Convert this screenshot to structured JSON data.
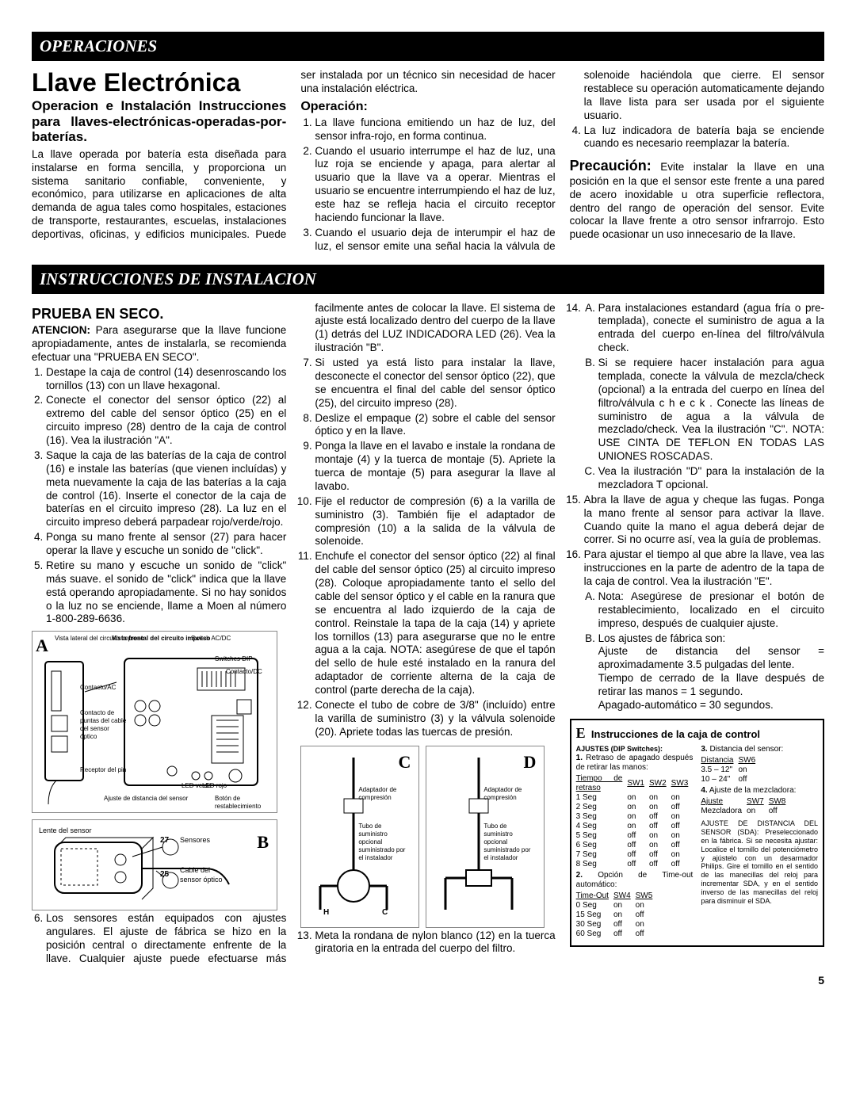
{
  "header1": "OPERACIONES",
  "header2": "INSTRUCCIONES DE INSTALACION",
  "title": "Llave Electrónica",
  "subtitle": "Operacion e Instalación Instrucciones para llaves-electrónicas-operadas-por-baterías.",
  "intro": "La llave operada por batería esta diseñada para instalarse en forma sencilla, y proporciona un sistema sanitario confiable, conveniente, y económico, para utilizarse en aplicaciones de alta demanda de agua tales como hospitales, estaciones de transporte, restaurantes, escuelas, instalaciones deportivas, oficinas, y edificios municipales. Puede ser instalada por un técnico sin necesidad de hacer una instalación eléctrica.",
  "op_h": "Operación:",
  "op_1": "La llave funciona emitiendo un haz de luz, del sensor infra-rojo, en forma continua.",
  "op_2": "Cuando el usuario interrumpe el haz de luz, una luz roja se enciende y apaga, para alertar al usuario que la llave va a operar. Mientras el usuario se encuentre interrumpiendo el haz de luz, este haz se refleja hacia el circuito receptor haciendo funcionar la llave.",
  "op_3": "Cuando el usuario deja de interumpir el haz de luz, el sensor emite una señal hacia la válvula de solenoide haciéndola que cierre. El sensor restablece su operación automaticamente dejando la llave lista para ser usada por el siguiente usuario.",
  "op_4": "La luz indicadora de batería baja se enciende cuando es necesario reemplazar la batería.",
  "caution_h": "Precaución:",
  "caution": "Evite instalar la llave en una posición en la que el sensor este frente a una pared de acero inoxidable u otra superficie reflectora, dentro del rango de operación del sensor. Evite colocar la llave frente a otro sensor infrarrojo. Esto puede ocasionar un uso innecesario de la llave.",
  "dry_h": "PRUEBA EN SECO.",
  "dry_note_h": "ATENCION:",
  "dry_note": "Para asegurarse que la llave funcione apropiadamente, antes de instalarla, se recomienda efectuar una \"PRUEBA EN SECO\".",
  "s1": "Destape la caja de control (14) desenroscando los tornillos (13) con un llave hexagonal.",
  "s2": "Conecte el conector del sensor óptico (22) al extremo del cable del sensor óptico (25) en el circuito impreso (28) dentro de la caja de control (16). Vea la ilustración \"A\".",
  "s3": "Saque la caja de las baterías de la caja de control (16) e instale las baterías (que vienen incluídas) y meta nuevamente la caja de las baterías a la caja de control (16). Inserte el conector de la caja de baterías en el circuito impreso (28). La luz en el circuito impreso deberá parpadear rojo/verde/rojo.",
  "s4": "Ponga su mano frente al sensor (27) para hacer operar la llave y escuche un sonido de \"click\".",
  "s5": "Retire su mano y escuche un sonido de \"click\" más suave. el sonido de \"click\" indica que la llave está operando apropiadamente. Si no hay sonidos o la luz no se enciende, llame a Moen al número 1-800-289-6636.",
  "s6": "Los sensores están equipados con ajustes angulares. El ajuste de fábrica se hizo en la posición central o directamente enfrente de la llave. Cualquier ajuste puede efectuarse más facilmente antes de colocar la llave. El sistema de ajuste está localizado dentro del cuerpo de la llave (1) detrás del LUZ INDICADORA LED (26). Vea la ilustración \"B\".",
  "s7": "Si usted ya está listo para instalar la llave, desconecte el conector del sensor óptico (22), que se encuentra el final del cable del sensor óptico (25), del circuito impreso (28).",
  "s8": "Deslize el empaque (2) sobre el cable del sensor óptico y en la llave.",
  "s9": "Ponga la llave en el lavabo e instale la rondana de montaje (4) y la tuerca de montaje (5). Apriete la tuerca de montaje (5) para asegurar la llave al lavabo.",
  "s10": "Fije el reductor de compresión (6) a la varilla de suministro (3). También fije el adaptador de compresión (10) a la salida de la válvula de solenoide.",
  "s11": "Enchufe el conector del sensor óptico (22) al final del cable del sensor óptico (25) al circuito impreso (28). Coloque apropiadamente tanto el sello del cable del sensor óptico y el cable en la ranura que se encuentra al lado izquierdo de la caja de control. Reinstale la tapa de la caja (14) y apriete los tornillos (13) para asegurarse que no le entre agua a la caja. NOTA: asegúrese de que el tapón del sello de hule esté instalado en la ranura del adaptador de corriente alterna de la caja de control (parte derecha de la caja).",
  "s12": "Conecte el tubo de cobre de 3/8\" (incluído) entre la varilla de suministro (3) y la válvula solenoide (20). Apriete todas las tuercas de presión.",
  "s13": "Meta la rondana de nylon blanco (12) en la tuerca giratoria en la entrada del cuerpo del filtro.",
  "s14a": "Para instalaciones estandard (agua fría o pre-templada), conecte el suministro de agua a la entrada del cuerpo en-línea del filtro/válvula check.",
  "s14b": "Si se requiere hacer instalación para agua templada, conecte la válvula de mezcla/check (opcional) a la entrada del cuerpo en línea del filtro/válvula c h e c k . Conecte las líneas de suministro de agua a la válvula de mezclado/check. Vea la ilustración \"C\". NOTA: USE CINTA DE TEFLON EN TODAS LAS UNIONES ROSCADAS.",
  "s14c": "Vea la ilustración \"D\" para la instalación de la mezcladora T opcional.",
  "s15": "Abra la llave de agua y cheque las fugas. Ponga la mano frente al sensor para activar la llave. Cuando quite la mano el agua deberá dejar de correr. Si no ocurre así, vea la guía de problemas.",
  "s16": "Para ajustar el tiempo al que abre la llave, vea las instrucciones en la parte de adentro de la tapa de la caja de control. Vea la ilustración \"E\".",
  "s16a": "Nota: Asegúrese de presionar el botón de restablecimiento, localizado en el circuito impreso, después de cualquier ajuste.",
  "s16b": "Los ajustes de fábrica son:\nAjuste de distancia del sensor = aproximadamente 3.5 pulgadas del lente.\nTiempo de cerrado de la llave después de retirar las manos = 1 segundo.\nApagado-automático = 30 segundos.",
  "e_title": "Instrucciones de la caja de control",
  "e_settings_h": "AJUSTES (DIP Switches):",
  "e_sec1": "Retraso de apagado después de retirar las manos:",
  "e_t1": {
    "head": [
      "Tiempo de retraso",
      "SW1",
      "SW2",
      "SW3"
    ],
    "rows": [
      [
        "1 Seg",
        "on",
        "on",
        "on"
      ],
      [
        "2 Seg",
        "on",
        "on",
        "off"
      ],
      [
        "3 Seg",
        "on",
        "off",
        "on"
      ],
      [
        "4 Seg",
        "on",
        "off",
        "off"
      ],
      [
        "5 Seg",
        "off",
        "on",
        "on"
      ],
      [
        "6 Seg",
        "off",
        "on",
        "off"
      ],
      [
        "7 Seg",
        "off",
        "off",
        "on"
      ],
      [
        "8 Seg",
        "off",
        "off",
        "off"
      ]
    ]
  },
  "e_sec2": "Opción de Time-out automático:",
  "e_t2": {
    "head": [
      "Time-Out",
      "SW4",
      "SW5"
    ],
    "rows": [
      [
        "0 Seg",
        "on",
        "on"
      ],
      [
        "15 Seg",
        "on",
        "off"
      ],
      [
        "30 Seg",
        "off",
        "on"
      ],
      [
        "60 Seg",
        "off",
        "off"
      ]
    ]
  },
  "e_sec3": "Distancia del sensor:",
  "e_t3": {
    "head": [
      "Distancia",
      "SW6"
    ],
    "rows": [
      [
        "3.5 – 12\"",
        "on"
      ],
      [
        "10 – 24\"",
        "off"
      ]
    ]
  },
  "e_sec4": "Ajuste de la mezcladora:",
  "e_t4": {
    "head": [
      "Ajuste",
      "SW7",
      "SW8"
    ],
    "rows": [
      [
        "Mezcladora",
        "on",
        "off"
      ]
    ]
  },
  "e_note": "AJUSTE DE DISTANCIA DEL SENSOR (SDA): Preseleccionado en la fábrica. Si se necesita ajustar: Localice el tornillo del potenciómetro y ajústelo con un desarmador Philips. Gire el tornillo en el sentido de las manecillas del reloj para incrementar SDA, y en el sentido inverso de las manecillas del reloj para disminuir el SDA.",
  "page_no": "5",
  "diagA": {
    "labels": {
      "side": "Vista lateral del circuito impreso",
      "front": "Vista frontal del circuito impreso",
      "sw": "Switch AC/DC",
      "dip": "Switches DIP",
      "acdc": "Contacto/DC",
      "ac": "Contacto/AC",
      "optic": "Contacto de puntas del cable del sensor óptico",
      "pin": "Receptor del pin",
      "ledg": "LED verde",
      "ledr": "LED rojo",
      "dist": "Ajuste de distancia del sensor",
      "reset": "Botón de restablecimiento"
    }
  },
  "diagB": {
    "lens": "Lente del sensor",
    "n27": "27",
    "sensors": "Sensores",
    "n25": "25",
    "cable": "Cable del sensor óptico"
  },
  "diagCD": {
    "comp": "Adaptador de compresión",
    "supply": "Tubo de suministro opcional suministrado por el instalador",
    "H": "H",
    "C": "C"
  }
}
